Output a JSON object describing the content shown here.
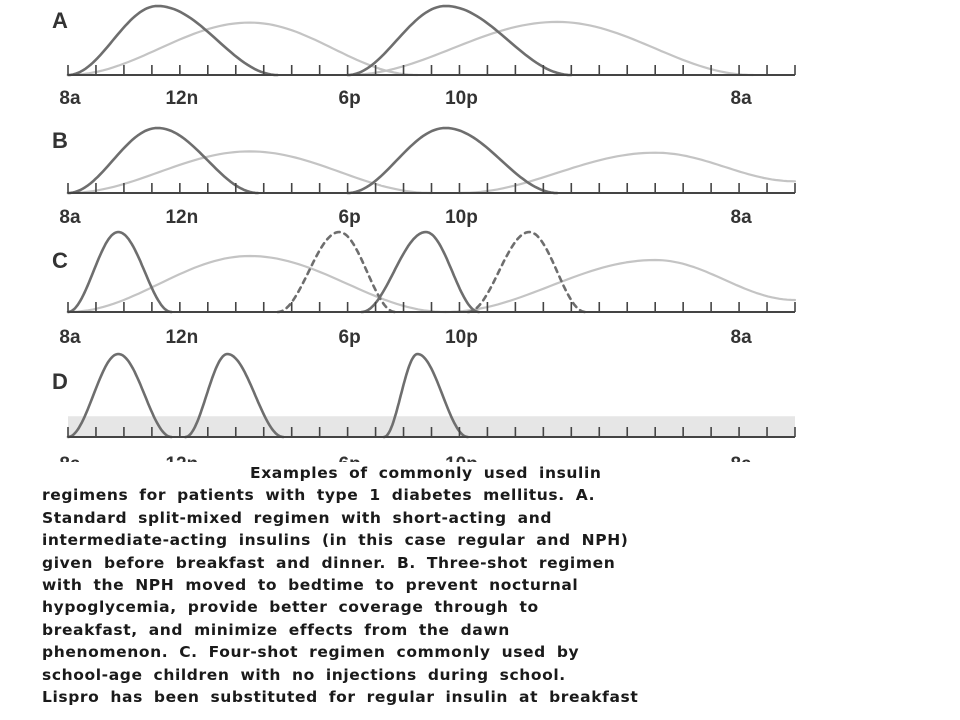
{
  "chart_data": {
    "type": "line",
    "x_unit": "hour of day, continuing past midnight (24 = midnight, 32 = 8a next day)",
    "x_ticks": [
      {
        "value": 8,
        "label": "8a"
      },
      {
        "value": 12,
        "label": "12n"
      },
      {
        "value": 18,
        "label": "6p"
      },
      {
        "value": 22,
        "label": "10p"
      },
      {
        "value": 32,
        "label": "8a"
      }
    ],
    "xlim": [
      8,
      34
    ],
    "ylim": [
      0,
      1
    ],
    "legend": "none",
    "grid": false,
    "colors": {
      "short_acting": "#6e6e6e",
      "intermediate_acting": "#c4c4c4",
      "band": "#e6e6e6",
      "axis": "#444444"
    },
    "panels": [
      {
        "label": "A",
        "series": [
          {
            "kind": "short-acting",
            "style": "solid",
            "x": [
              8,
              11.2,
              15.5
            ],
            "y": [
              0,
              1,
              0
            ]
          },
          {
            "kind": "short-acting",
            "style": "solid",
            "x": [
              18,
              21.5,
              26
            ],
            "y": [
              0,
              1,
              0
            ]
          },
          {
            "kind": "intermediate-acting",
            "style": "solid",
            "x": [
              8,
              14.5,
              20.5
            ],
            "y": [
              0,
              0.76,
              0
            ]
          },
          {
            "kind": "intermediate-acting",
            "style": "solid",
            "x": [
              18,
              25.5,
              32.5
            ],
            "y": [
              0,
              0.77,
              0
            ]
          }
        ]
      },
      {
        "label": "B",
        "series": [
          {
            "kind": "short-acting",
            "style": "solid",
            "x": [
              8,
              11.2,
              14.8
            ],
            "y": [
              0,
              1,
              0
            ]
          },
          {
            "kind": "short-acting",
            "style": "solid",
            "x": [
              18,
              21.5,
              25.5
            ],
            "y": [
              0,
              1,
              0
            ]
          },
          {
            "kind": "intermediate-acting",
            "style": "solid",
            "x": [
              8,
              14.5,
              21
            ],
            "y": [
              0,
              0.64,
              0
            ]
          },
          {
            "kind": "intermediate-acting",
            "style": "solid",
            "x": [
              22,
              29,
              34
            ],
            "y": [
              0,
              0.62,
              0.18
            ]
          }
        ]
      },
      {
        "label": "C",
        "series": [
          {
            "kind": "short-acting",
            "style": "solid",
            "x": [
              8,
              9.8,
              11.7
            ],
            "y": [
              0,
              1,
              0
            ]
          },
          {
            "kind": "short-acting",
            "style": "solid",
            "x": [
              18.5,
              20.8,
              22.7
            ],
            "y": [
              0,
              1,
              0
            ]
          },
          {
            "kind": "short-acting",
            "style": "dashed",
            "x": [
              15.5,
              17.7,
              19.7
            ],
            "y": [
              0,
              1,
              0
            ]
          },
          {
            "kind": "short-acting",
            "style": "dashed",
            "x": [
              22.3,
              24.5,
              26.5
            ],
            "y": [
              0,
              1,
              0
            ]
          },
          {
            "kind": "intermediate-acting",
            "style": "solid",
            "x": [
              8,
              14.5,
              21.5
            ],
            "y": [
              0,
              0.7,
              0
            ]
          },
          {
            "kind": "intermediate-acting",
            "style": "solid",
            "x": [
              21.5,
              29,
              34
            ],
            "y": [
              0,
              0.65,
              0.15
            ]
          }
        ]
      },
      {
        "label": "D",
        "series": [
          {
            "kind": "short-acting",
            "style": "solid",
            "x": [
              8,
              9.8,
              11.7
            ],
            "y": [
              0,
              1,
              0
            ]
          },
          {
            "kind": "short-acting",
            "style": "solid",
            "x": [
              12.2,
              13.7,
              15.7
            ],
            "y": [
              0,
              1,
              0
            ]
          },
          {
            "kind": "short-acting",
            "style": "solid",
            "x": [
              19.3,
              20.5,
              22.3
            ],
            "y": [
              0,
              1,
              0
            ]
          }
        ],
        "band": {
          "y": [
            0,
            0.25
          ]
        }
      }
    ],
    "caption": [
      "Examples of commonly used insulin",
      "regimens for patients with type 1 diabetes mellitus. A.",
      "Standard split-mixed regimen with short-acting and",
      "intermediate-acting insulins (in this case regular and NPH)",
      "given before breakfast and dinner. B. Three-shot regimen",
      "with the NPH moved to bedtime to prevent nocturnal",
      "hypoglycemia, provide better coverage through to",
      "breakfast, and minimize effects from the dawn",
      "phenomenon. C. Four-shot regimen commonly used by",
      "school-age children with no injections during school.",
      "Lispro has been substituted for regular insulin at breakfast"
    ]
  }
}
